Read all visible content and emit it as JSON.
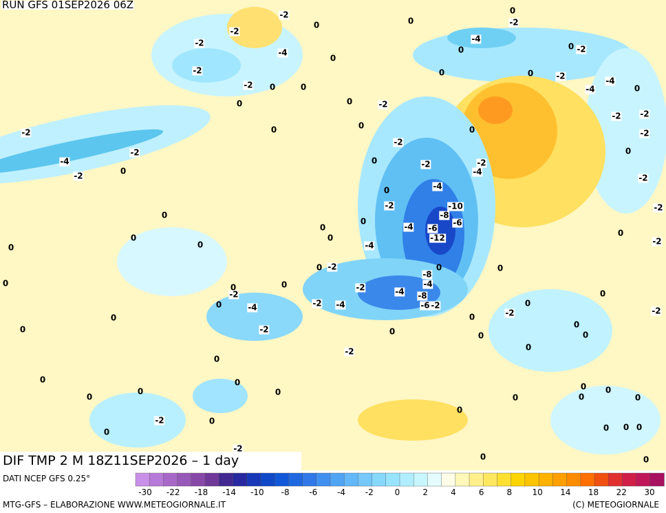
{
  "header": {
    "run": "RUN GFS 01SEP2026 06Z"
  },
  "map": {
    "title": "DIF TMP 2 M 18Z11SEP2026 – 1 day",
    "contour_labels": [
      -2,
      0,
      -2,
      0,
      -2,
      0,
      -4,
      -2,
      -4,
      0,
      0,
      0,
      -2,
      -2,
      0,
      0,
      -2,
      -2,
      0,
      0,
      -4,
      -4,
      0,
      -2,
      0,
      0,
      -2,
      -2,
      0,
      0,
      0,
      -2,
      -2,
      -2,
      -2,
      0,
      -4,
      0,
      -2,
      -2,
      -4,
      -2,
      0,
      -2,
      -4,
      0,
      -2,
      -10,
      -8,
      -2,
      0,
      0,
      -4,
      -6,
      -6,
      0,
      -12,
      0,
      0,
      0,
      -2,
      0,
      0,
      -4,
      0,
      -2,
      0,
      -8,
      0,
      -4,
      0,
      0,
      -2,
      0,
      -2,
      -4,
      -8,
      0,
      -2,
      -4,
      -4,
      -6,
      -2,
      0,
      0,
      0,
      -2,
      0,
      -2,
      0,
      -2,
      0,
      0,
      0,
      0,
      0,
      -2,
      0,
      0,
      0,
      0,
      0,
      0,
      0,
      0,
      0,
      0,
      0,
      0,
      -2,
      0,
      0,
      0,
      0,
      0,
      -2,
      0,
      0
    ]
  },
  "colorbar": {
    "source": "DATI NCEP GFS 0.25°",
    "colors": [
      "#c890e8",
      "#b87ad8",
      "#a868c8",
      "#9858b8",
      "#8848a8",
      "#703898",
      "#402890",
      "#2828a0",
      "#1838b8",
      "#1048c8",
      "#1058d8",
      "#2068e0",
      "#3078e8",
      "#4090f0",
      "#50a4f4",
      "#62b8f8",
      "#74c8fa",
      "#86d8fc",
      "#98e4ff",
      "#b0eeff",
      "#c8f6ff",
      "#e4fcff",
      "#fffde8",
      "#fff8b8",
      "#fff08c",
      "#ffe860",
      "#ffe030",
      "#ffd400",
      "#ffc400",
      "#ffb200",
      "#ffa000",
      "#ff8c00",
      "#ff7000",
      "#f05010",
      "#e03030",
      "#d02048",
      "#c01858",
      "#a81060"
    ],
    "ticks": [
      -30,
      -22,
      -18,
      -14,
      -10,
      -8,
      -6,
      -4,
      -2,
      0,
      2,
      4,
      6,
      8,
      10,
      14,
      18,
      22,
      30
    ]
  },
  "footer": {
    "left": "MTG-GFS – ELABORAZIONE WWW.METEOGIORNALE.IT",
    "right": "(C) METEOGIORNALE"
  }
}
